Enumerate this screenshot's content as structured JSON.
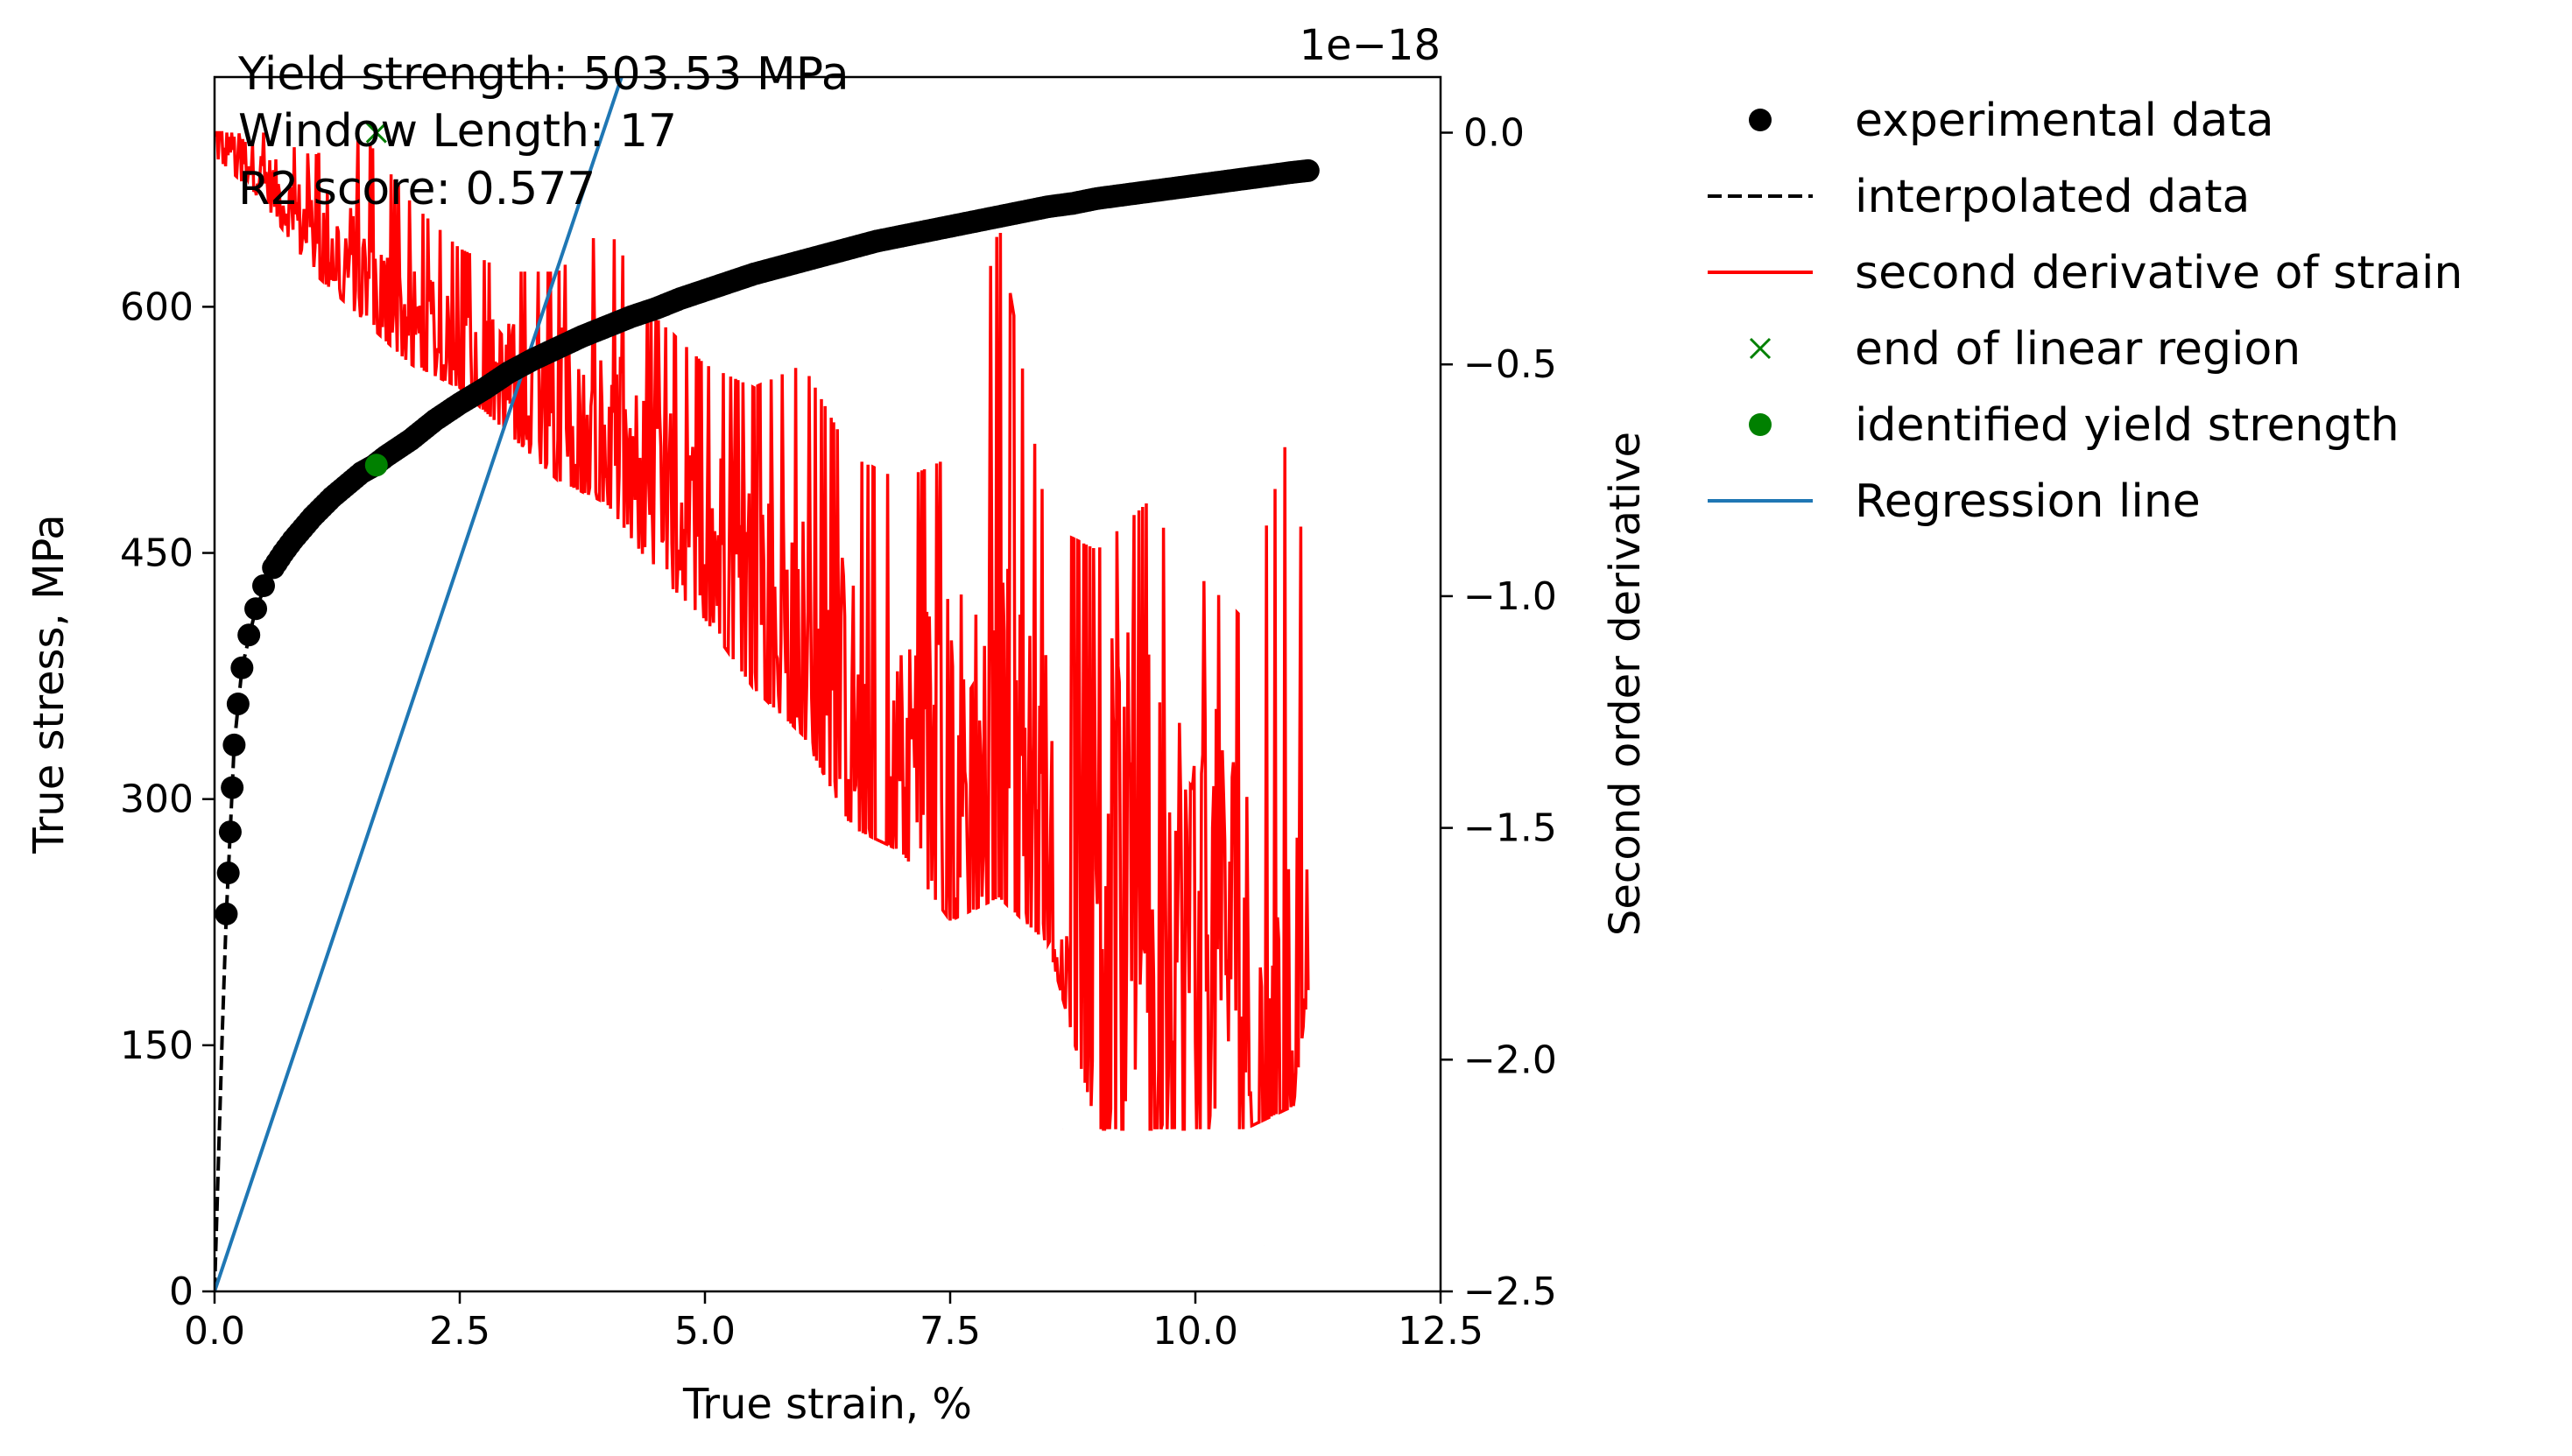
{
  "chart_data": {
    "type": "scatter",
    "xlabel": "True strain, %",
    "ylabel": "True stress, MPa",
    "y2label": "Second order derivative",
    "y2_offset_label": "1e−18",
    "xlim": [
      0,
      12.5
    ],
    "ylim": [
      0,
      740
    ],
    "y2lim": [
      -2.5,
      0.12
    ],
    "x_ticks": [
      0,
      2.5,
      5,
      7.5,
      10,
      12.5
    ],
    "x_tick_labels": [
      "0.0",
      "2.5",
      "5.0",
      "7.5",
      "10.0",
      "12.5"
    ],
    "y_ticks": [
      0,
      150,
      300,
      450,
      600
    ],
    "y_tick_labels": [
      "0",
      "150",
      "300",
      "450",
      "600"
    ],
    "y2_ticks": [
      0.0,
      -0.5,
      -1.0,
      -1.5,
      -2.0,
      -2.5
    ],
    "y2_tick_labels": [
      "0.0",
      "−0.5",
      "−1.0",
      "−1.5",
      "−2.0",
      "−2.5"
    ],
    "annotations": [
      "Yield strength: 503.53 MPa",
      "Window Length: 17",
      "R2 score: 0.577"
    ],
    "legend_position": "outside right, top",
    "legend": [
      {
        "label": "experimental data",
        "marker": "dot",
        "color": "#000000"
      },
      {
        "label": "interpolated data",
        "marker": "dashed-line",
        "color": "#000000"
      },
      {
        "label": "second derivative of strain",
        "marker": "line",
        "color": "#ff0000"
      },
      {
        "label": "end of linear region",
        "marker": "x",
        "color": "#008000"
      },
      {
        "label": "identified yield strength",
        "marker": "dot",
        "color": "#008000"
      },
      {
        "label": "Regression line",
        "marker": "line",
        "color": "#1f77b4"
      }
    ],
    "series": [
      {
        "name": "experimental data",
        "axis": "left",
        "color": "#000000",
        "x": [
          0.12,
          0.14,
          0.16,
          0.18,
          0.2,
          0.24,
          0.28,
          0.35,
          0.42,
          0.5,
          0.6,
          0.7,
          0.8,
          0.9,
          1.0,
          1.1,
          1.2,
          1.3,
          1.4,
          1.5,
          1.62,
          1.75,
          1.9,
          2.0,
          2.25,
          2.5,
          2.75,
          3.0,
          3.25,
          3.5,
          3.75,
          4.0,
          4.25,
          4.5,
          4.75,
          5.0,
          5.25,
          5.5,
          5.75,
          6.0,
          6.25,
          6.5,
          6.75,
          7.0,
          7.25,
          7.5,
          7.75,
          8.0,
          8.25,
          8.5,
          8.75,
          9.0,
          9.25,
          9.5,
          9.75,
          10.0,
          10.25,
          10.5,
          10.75,
          11.0,
          11.15
        ],
        "y": [
          230,
          255,
          280,
          307,
          333,
          358,
          380,
          400,
          416,
          430,
          441,
          450,
          458,
          465,
          472,
          478,
          484,
          489,
          494,
          499,
          503,
          509,
          515,
          519,
          531,
          541,
          550,
          560,
          568,
          575,
          582,
          588,
          594,
          599,
          605,
          610,
          615,
          620,
          624,
          628,
          632,
          636,
          640,
          643,
          646,
          649,
          652,
          655,
          658,
          661,
          663,
          666,
          668,
          670,
          672,
          674,
          676,
          678,
          680,
          682,
          683
        ]
      },
      {
        "name": "interpolated data",
        "axis": "left",
        "color": "#000000",
        "x": [
          0.0,
          0.04,
          0.08,
          0.12,
          0.16,
          0.2,
          0.28,
          0.42,
          0.6
        ],
        "y": [
          0,
          80,
          160,
          230,
          280,
          333,
          380,
          416,
          441
        ]
      },
      {
        "name": "Regression line",
        "axis": "left",
        "color": "#1f77b4",
        "x": [
          0.0,
          4.15
        ],
        "y": [
          0,
          740
        ]
      },
      {
        "name": "identified yield strength",
        "axis": "left",
        "color": "#008000",
        "x": [
          1.65
        ],
        "y": [
          503.53
        ]
      },
      {
        "name": "end of linear region",
        "axis": "right",
        "color": "#008000",
        "x": [
          1.65
        ],
        "y": [
          0.0
        ]
      },
      {
        "name": "second derivative of strain",
        "axis": "right",
        "color": "#ff0000",
        "x": [
          0.0,
          0.3,
          0.5,
          0.7,
          0.9,
          1.1,
          1.3,
          1.5,
          1.7,
          2.0,
          2.5,
          3.0,
          3.5,
          4.0,
          4.5,
          5.0,
          5.5,
          6.0,
          6.5,
          6.8,
          7.0,
          7.5,
          8.0,
          8.5,
          8.65,
          9.0,
          9.5,
          10.0,
          10.5,
          10.7,
          11.0,
          11.15
        ],
        "y": [
          0.0,
          -0.05,
          -0.1,
          -0.15,
          -0.2,
          -0.22,
          -0.28,
          -0.32,
          -0.36,
          -0.42,
          -0.5,
          -0.55,
          -0.6,
          -0.7,
          -0.8,
          -0.88,
          -1.0,
          -1.15,
          -1.25,
          -1.85,
          -1.3,
          -1.4,
          -1.45,
          -1.5,
          -2.15,
          -1.6,
          -1.65,
          -1.7,
          -1.75,
          -2.4,
          -1.8,
          -1.85
        ],
        "envelope": {
          "x": [
            0.0,
            0.5,
            1.0,
            1.5,
            2.0,
            2.5,
            3.0,
            3.5,
            4.0,
            4.5,
            5.0,
            5.5,
            6.0,
            6.5,
            7.0,
            7.5,
            8.0,
            8.5,
            9.0,
            9.5,
            10.0,
            10.5,
            11.0,
            11.15
          ],
          "upper": [
            0.0,
            0.0,
            -0.05,
            0.0,
            -0.15,
            -0.25,
            -0.3,
            -0.3,
            -0.2,
            -0.4,
            -0.5,
            -0.55,
            -0.5,
            -0.7,
            -0.75,
            -0.7,
            -0.2,
            -0.85,
            -0.9,
            -0.8,
            -0.95,
            -1.05,
            -0.6,
            -1.1
          ],
          "lower": [
            -0.05,
            -0.15,
            -0.3,
            -0.4,
            -0.5,
            -0.55,
            -0.65,
            -0.75,
            -0.8,
            -0.95,
            -1.05,
            -1.2,
            -1.3,
            -1.5,
            -1.55,
            -1.7,
            -1.65,
            -1.75,
            -2.15,
            -2.15,
            -2.15,
            -2.15,
            -2.1,
            -1.85
          ]
        }
      }
    ]
  }
}
